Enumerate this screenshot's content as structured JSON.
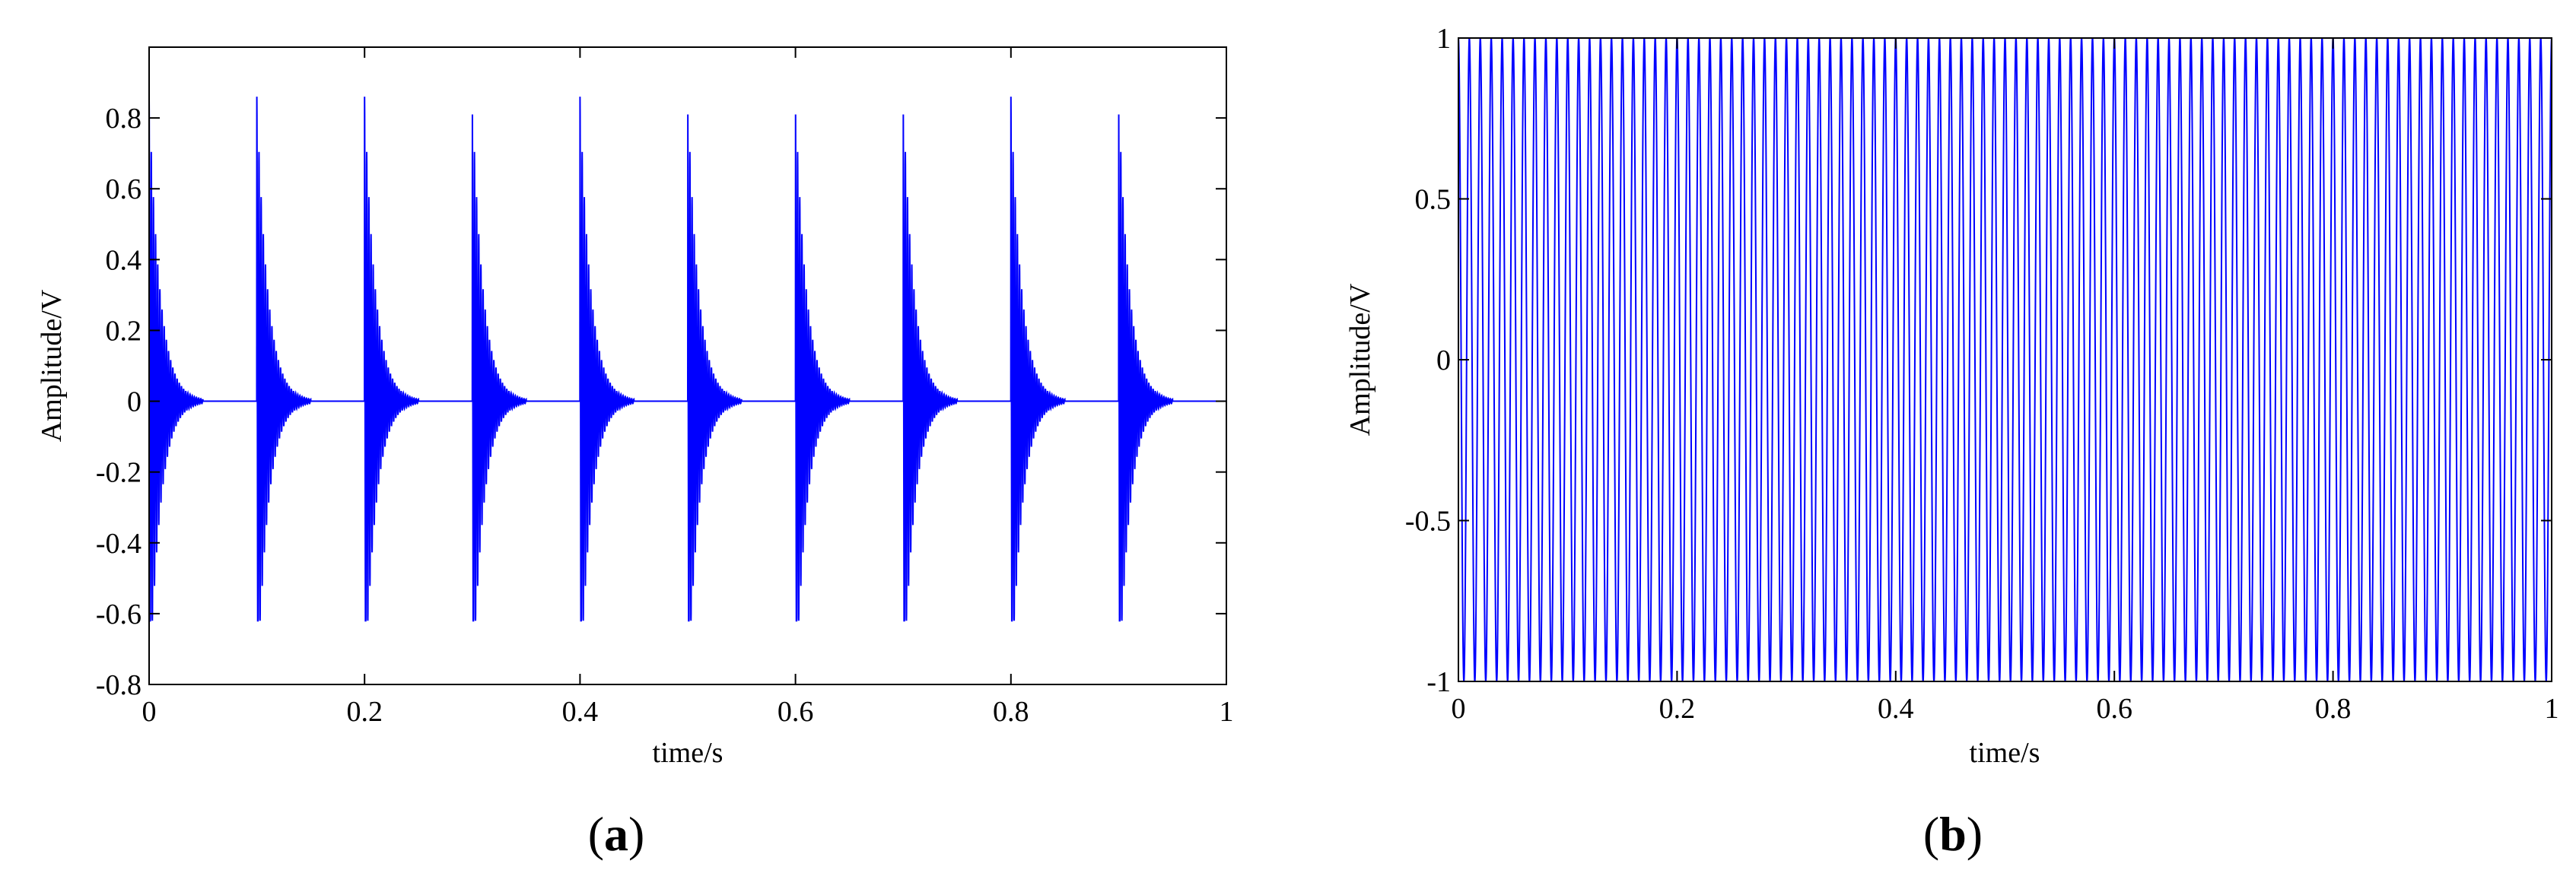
{
  "chart_data": [
    {
      "panel": "(a)",
      "panel_letter": "a",
      "type": "line",
      "xlabel": "time/s",
      "ylabel": "Amplitude/V",
      "xlim": [
        0,
        1
      ],
      "ylim": [
        -0.8,
        1.0
      ],
      "xticks": [
        0,
        0.2,
        0.4,
        0.6,
        0.8,
        1
      ],
      "xtick_labels": [
        "0",
        "0.2",
        "0.4",
        "0.6",
        "0.8",
        "1"
      ],
      "yticks": [
        -0.8,
        -0.6,
        -0.4,
        -0.2,
        0,
        0.2,
        0.4,
        0.6,
        0.8
      ],
      "ytick_labels": [
        "-0.8",
        "-0.6",
        "-0.4",
        "-0.2",
        "0",
        "0.2",
        "0.4",
        "0.6",
        "0.8"
      ],
      "grid": false,
      "line_color": "#0000ff",
      "signal": {
        "kind": "periodic decaying impulses",
        "impulse_times": [
          0,
          0.1,
          0.2,
          0.3,
          0.4,
          0.5,
          0.6,
          0.7,
          0.8,
          0.9
        ],
        "peak_max": 0.86,
        "peak_min": -0.62,
        "decay_to_zero_within": 0.05
      }
    },
    {
      "panel": "(b)",
      "panel_letter": "b",
      "type": "line",
      "xlabel": "time/s",
      "ylabel": "Amplitude/V",
      "xlim": [
        0,
        1
      ],
      "ylim": [
        -1,
        1
      ],
      "xticks": [
        0,
        0.2,
        0.4,
        0.6,
        0.8,
        1
      ],
      "xtick_labels": [
        "0",
        "0.2",
        "0.4",
        "0.6",
        "0.8",
        "1"
      ],
      "yticks": [
        -1,
        -0.5,
        0,
        0.5,
        1
      ],
      "ytick_labels": [
        "-1",
        "-0.5",
        "0",
        "0.5",
        "1"
      ],
      "grid": false,
      "line_color": "#0000ff",
      "signal": {
        "kind": "dense sinusoidal oscillation",
        "amplitude": 1,
        "cycles_in_window": 100
      }
    }
  ]
}
